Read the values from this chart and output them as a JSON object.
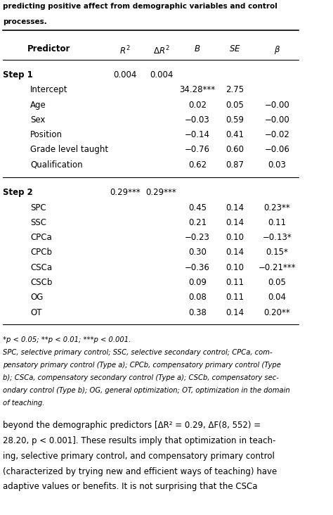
{
  "title_lines": [
    "predicting positive affect from demographic variables and control",
    "processes."
  ],
  "col_headers": [
    "Predictor",
    "R²",
    "ΔR²",
    "B",
    "SE",
    "β"
  ],
  "step1_label": "Step 1",
  "step1_r2": "0.004",
  "step1_dr2": "0.004",
  "step2_label": "Step 2",
  "step2_r2": "0.29***",
  "step2_dr2": "0.29***",
  "step1_rows": [
    [
      "Intercept",
      "",
      "",
      "34.28***",
      "2.75",
      ""
    ],
    [
      "Age",
      "",
      "",
      "0.02",
      "0.05",
      "−0.00"
    ],
    [
      "Sex",
      "",
      "",
      "−0.03",
      "0.59",
      "−0.00"
    ],
    [
      "Position",
      "",
      "",
      "−0.14",
      "0.41",
      "−0.02"
    ],
    [
      "Grade level taught",
      "",
      "",
      "−0.76",
      "0.60",
      "−0.06"
    ],
    [
      "Qualification",
      "",
      "",
      "0.62",
      "0.87",
      "0.03"
    ]
  ],
  "step2_rows": [
    [
      "SPC",
      "",
      "",
      "0.45",
      "0.14",
      "0.23**"
    ],
    [
      "SSC",
      "",
      "",
      "0.21",
      "0.14",
      "0.11"
    ],
    [
      "CPCa",
      "",
      "",
      "−0.23",
      "0.10",
      "−0.13*"
    ],
    [
      "CPCb",
      "",
      "",
      "0.30",
      "0.14",
      "0.15*"
    ],
    [
      "CSCa",
      "",
      "",
      "−0.36",
      "0.10",
      "−0.21***"
    ],
    [
      "CSCb",
      "",
      "",
      "0.09",
      "0.11",
      "0.05"
    ],
    [
      "OG",
      "",
      "",
      "0.08",
      "0.11",
      "0.04"
    ],
    [
      "OT",
      "",
      "",
      "0.38",
      "0.14",
      "0.20**"
    ]
  ],
  "footnote_lines": [
    "*p < 0.05; **p < 0.01; ***p < 0.001.",
    "SPC, selective primary control; SSC, selective secondary control; CPCa, com-",
    "pensatory primary control (Type a); CPCb, compensatory primary control (Type",
    "b); CSCa, compensatory secondary control (Type a); CSCb, compensatory sec-",
    "ondary control (Type b); OG, general optimization; OT, optimization in the domain",
    "of teaching."
  ],
  "body_text_lines": [
    "beyond the demographic predictors [ΔR² = 0.29, ΔF(8, 552) =",
    "28.20, p < 0.001]. These results imply that optimization in teach-",
    "ing, selective primary control, and compensatory primary control",
    "(characterized by trying new and efficient ways of teaching) have",
    "adaptive values or benefits. It is not surprising that the CSCa"
  ],
  "bg_color": "#ffffff",
  "text_color": "#000000",
  "header_bold": true
}
